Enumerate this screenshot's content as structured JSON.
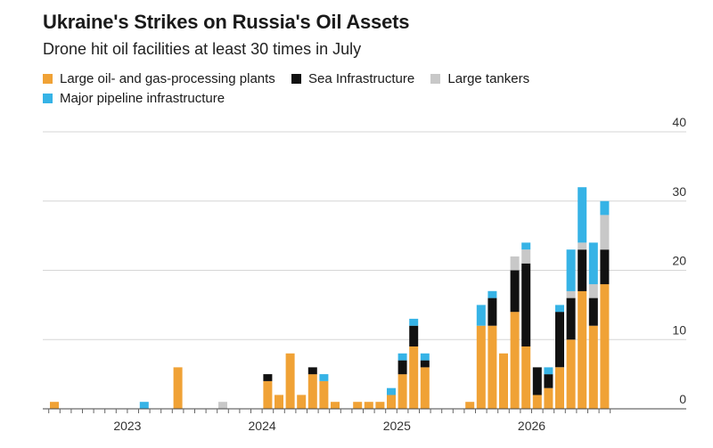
{
  "chart_data": {
    "type": "bar",
    "stacked": true,
    "title": "Ukraine's Strikes on Russia's Oil Assets",
    "subtitle": "Drone hit oil facilities at least 30 times in July",
    "ylim": [
      0,
      40
    ],
    "y_ticks": [
      "0",
      "10",
      "20",
      "30",
      "40"
    ],
    "x_tick_labels": [
      {
        "index": 7,
        "label": "2023"
      },
      {
        "index": 19,
        "label": "2024"
      },
      {
        "index": 31,
        "label": "2025"
      },
      {
        "index": 43,
        "label": "2026"
      }
    ],
    "x_period": "monthly",
    "x_start_month": "2022-07",
    "legend_position": "top-left",
    "grid": true,
    "series": [
      {
        "name": "Large oil- and gas-processing plants",
        "color": "#f0a236",
        "values": [
          1,
          0,
          0,
          0,
          0,
          0,
          0,
          0,
          0,
          0,
          0,
          6,
          0,
          0,
          0,
          0,
          0,
          0,
          0,
          4,
          2,
          8,
          2,
          5,
          4,
          1,
          0,
          1,
          1,
          1,
          2,
          5,
          9,
          6,
          0,
          0,
          0,
          1,
          12,
          12,
          8,
          14,
          9,
          2,
          3,
          6,
          10,
          17,
          12,
          18
        ]
      },
      {
        "name": "Sea Infrastructure",
        "color": "#111111",
        "values": [
          0,
          0,
          0,
          0,
          0,
          0,
          0,
          0,
          0,
          0,
          0,
          0,
          0,
          0,
          0,
          0,
          0,
          0,
          0,
          1,
          0,
          0,
          0,
          1,
          0,
          0,
          0,
          0,
          0,
          0,
          0,
          2,
          3,
          1,
          0,
          0,
          0,
          0,
          0,
          4,
          0,
          6,
          12,
          4,
          2,
          8,
          6,
          6,
          4,
          5
        ]
      },
      {
        "name": "Large tankers",
        "color": "#c8c8c8",
        "values": [
          0,
          0,
          0,
          0,
          0,
          0,
          0,
          0,
          0,
          0,
          0,
          0,
          0,
          0,
          0,
          1,
          0,
          0,
          0,
          0,
          0,
          0,
          0,
          0,
          0,
          0,
          0,
          0,
          0,
          0,
          0,
          0,
          0,
          0,
          0,
          0,
          0,
          0,
          0,
          0,
          0,
          2,
          2,
          0,
          0,
          0,
          1,
          1,
          2,
          5
        ]
      },
      {
        "name": "Major pipeline infrastructure",
        "color": "#36b3e6",
        "values": [
          0,
          0,
          0,
          0,
          0,
          0,
          0,
          0,
          1,
          0,
          0,
          0,
          0,
          0,
          0,
          0,
          0,
          0,
          0,
          0,
          0,
          0,
          0,
          0,
          1,
          0,
          0,
          0,
          0,
          0,
          1,
          1,
          1,
          1,
          0,
          0,
          0,
          0,
          3,
          1,
          0,
          0,
          1,
          0,
          1,
          1,
          6,
          8,
          6,
          2
        ]
      }
    ]
  }
}
